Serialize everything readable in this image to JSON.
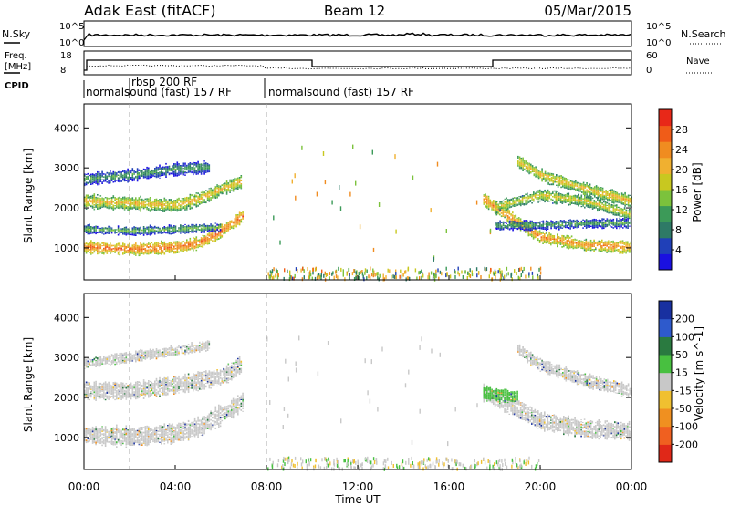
{
  "header": {
    "station": "Adak East (fitACF)",
    "beam": "Beam 12",
    "date": "05/Mar/2015"
  },
  "summary_panels": {
    "nsky": {
      "label": "N.Sky",
      "ticks": [
        "10^5",
        "10^0"
      ]
    },
    "nsearch": {
      "label": "N.Search",
      "ticks": [
        "10^5",
        "10^0"
      ]
    },
    "freq": {
      "label_lines": [
        "Freq.",
        "[MHz]"
      ],
      "ticks": [
        "18",
        "8"
      ]
    },
    "nave": {
      "label": "Nave",
      "ticks": [
        "60",
        "0"
      ]
    },
    "cpid": {
      "label": "CPID",
      "segments": [
        "normalsound (fast) 157 RF",
        "rbsp 200 RF",
        "normalsound (fast) 157 RF"
      ]
    }
  },
  "colorbars": {
    "power": {
      "label": "Power [dB]",
      "ticks": [
        "4",
        "8",
        "12",
        "16",
        "20",
        "24",
        "28"
      ],
      "colors": [
        "#1a10e0",
        "#2040b8",
        "#2e7a66",
        "#3c9a58",
        "#7cc23c",
        "#c8c820",
        "#f0b030",
        "#f08c20",
        "#f05c18",
        "#e82818"
      ]
    },
    "velocity": {
      "label": "Velocity [m s^-1]",
      "ticks": [
        "200",
        "100",
        "50",
        "15",
        "-15",
        "-50",
        "-100",
        "-200"
      ],
      "colors": [
        "#1830a0",
        "#2e5acc",
        "#2a7a40",
        "#48c040",
        "#c8c8c8",
        "#f0c030",
        "#f09020",
        "#f06020",
        "#e02818"
      ]
    }
  },
  "chart_data": [
    {
      "type": "heatmap",
      "name": "power",
      "ylabel": "Slant Range [km]",
      "xlabel": "Time UT",
      "xlim": [
        0,
        24
      ],
      "ylim": [
        200,
        4600
      ],
      "x_ticks": [
        "00:00",
        "04:00",
        "08:00",
        "12:00",
        "16:00",
        "20:00",
        "00:00"
      ],
      "y_ticks": [
        1000,
        2000,
        3000,
        4000
      ],
      "bands": [
        {
          "t": [
            0.0,
            2.0,
            4.0,
            5.0,
            6.0,
            7.0
          ],
          "center": [
            1000,
            950,
            1000,
            1100,
            1400,
            1800
          ],
          "width": 260,
          "level": 28
        },
        {
          "t": [
            0.0,
            2.0,
            4.0,
            5.0,
            6.0,
            6.9
          ],
          "center": [
            2150,
            2100,
            2050,
            2200,
            2450,
            2650
          ],
          "width": 300,
          "level": 22
        },
        {
          "t": [
            0.0,
            2.0,
            4.0,
            6.0
          ],
          "center": [
            1450,
            1400,
            1450,
            1500
          ],
          "width": 180,
          "level": 14
        },
        {
          "t": [
            0.0,
            2.0,
            4.0,
            5.5
          ],
          "center": [
            2700,
            2800,
            2950,
            3000
          ],
          "width": 260,
          "level": 12
        },
        {
          "t": [
            17.5,
            18.5,
            20.0,
            22.0,
            24.0
          ],
          "center": [
            2200,
            1800,
            1250,
            1050,
            1000
          ],
          "width": 260,
          "level": 26
        },
        {
          "t": [
            18.0,
            19.0,
            20.0,
            22.0,
            24.0
          ],
          "center": [
            2000,
            2150,
            2300,
            2150,
            1800
          ],
          "width": 260,
          "level": 20
        },
        {
          "t": [
            19.0,
            20.0,
            22.0,
            24.0
          ],
          "center": [
            3150,
            2800,
            2450,
            2150
          ],
          "width": 260,
          "level": 22
        },
        {
          "t": [
            18.0,
            20.0,
            22.0,
            24.0
          ],
          "center": [
            1550,
            1550,
            1600,
            1600
          ],
          "width": 200,
          "level": 12
        }
      ]
    },
    {
      "type": "heatmap",
      "name": "velocity",
      "ylabel": "Slant Range [km]",
      "xlabel": "Time UT",
      "xlim": [
        0,
        24
      ],
      "ylim": [
        200,
        4600
      ],
      "x_ticks": [
        "00:00",
        "04:00",
        "08:00",
        "12:00",
        "16:00",
        "20:00",
        "00:00"
      ],
      "y_ticks": [
        1000,
        2000,
        3000,
        4000
      ],
      "bands": [
        {
          "t": [
            0.0,
            2.0,
            4.0,
            5.0,
            6.0,
            7.0
          ],
          "center": [
            1050,
            1000,
            1100,
            1250,
            1550,
            1900
          ],
          "width": 420,
          "level": 0
        },
        {
          "t": [
            0.0,
            2.0,
            4.0,
            6.0,
            6.9
          ],
          "center": [
            2150,
            2150,
            2300,
            2500,
            2800
          ],
          "width": 380,
          "level": 0
        },
        {
          "t": [
            0.0,
            2.0,
            4.0,
            5.5
          ],
          "center": [
            2850,
            3000,
            3150,
            3300
          ],
          "width": 220,
          "level": 0
        },
        {
          "t": [
            17.5,
            19.0,
            20.0,
            22.0,
            24.0
          ],
          "center": [
            2100,
            1700,
            1400,
            1200,
            1150
          ],
          "width": 380,
          "level": 0
        },
        {
          "t": [
            19.0,
            20.0,
            22.0,
            24.0
          ],
          "center": [
            3200,
            2800,
            2400,
            2150
          ],
          "width": 280,
          "level": 0
        },
        {
          "t": [
            17.5,
            19.0
          ],
          "center": [
            2100,
            2000
          ],
          "width": 300,
          "level": 40
        }
      ]
    }
  ]
}
